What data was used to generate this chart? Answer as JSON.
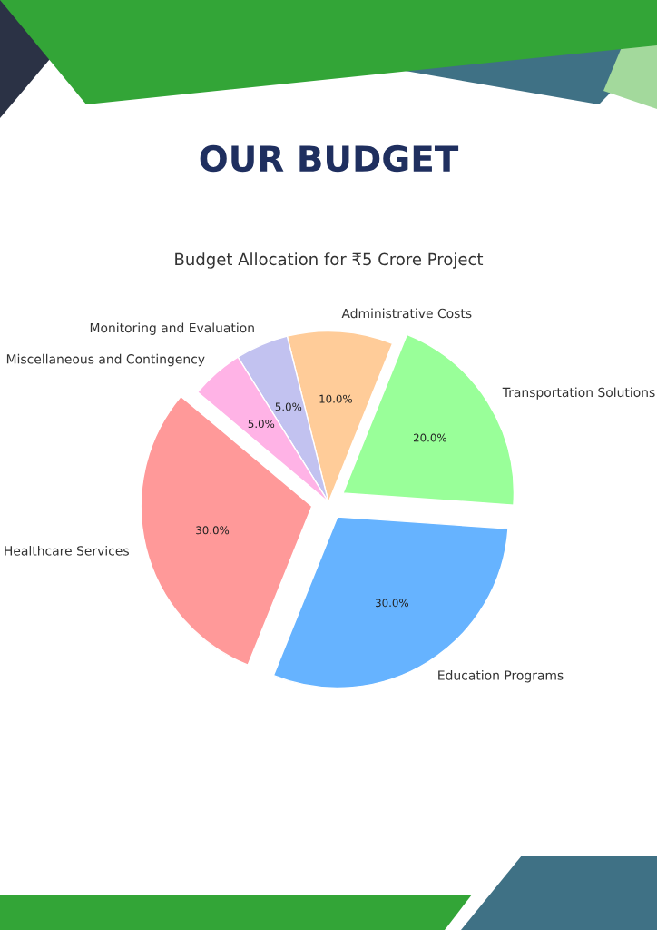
{
  "chart_data": {
    "type": "pie",
    "title": "OUR BUDGET",
    "subtitle": "Budget Allocation for ₹5 Crore Project",
    "categories": [
      "Healthcare Services",
      "Education Programs",
      "Transportation Solutions",
      "Administrative Costs",
      "Monitoring and Evaluation",
      "Miscellaneous and Contingency"
    ],
    "values": [
      30,
      30,
      20,
      10,
      5,
      5
    ],
    "colors": [
      "#ff9999",
      "#66b3ff",
      "#99ff99",
      "#ffcc99",
      "#c2c2f0",
      "#ffb3e6"
    ],
    "value_labels": [
      "30.0%",
      "30.0%",
      "20.0%",
      "10.0%",
      "5.0%",
      "5.0%"
    ]
  }
}
